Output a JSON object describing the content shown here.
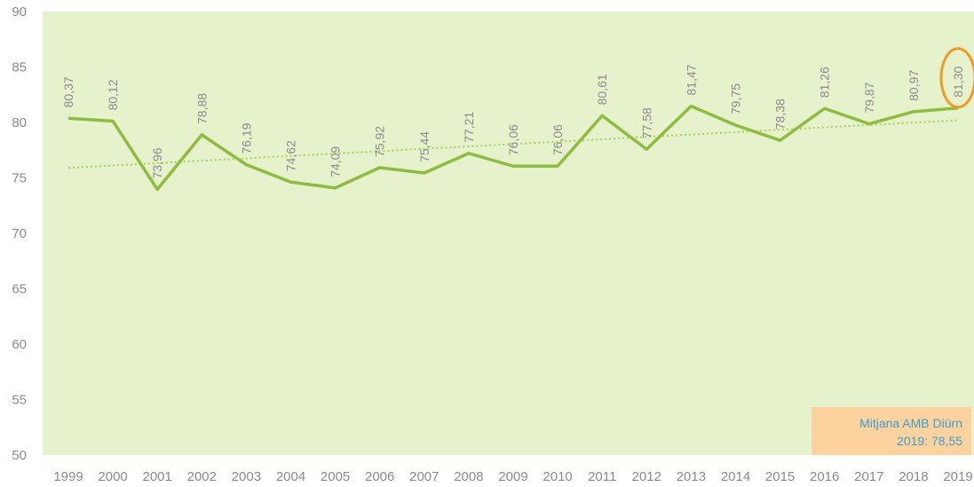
{
  "colors": {
    "plot_background": "#e6f2cc",
    "line": "#8ebc3e",
    "trendline": "#a8cf55",
    "tick_text": "#8a8a8a",
    "highlight_circle": "#f09a26",
    "annotation_background": "#fcd29e",
    "annotation_text": "#3a9fd0"
  },
  "chart_data": {
    "type": "line",
    "title": "",
    "xlabel": "",
    "ylabel": "",
    "ylim": [
      50,
      90
    ],
    "yticks": [
      "50",
      "55",
      "60",
      "65",
      "70",
      "75",
      "80",
      "85",
      "90"
    ],
    "x": [
      "1999",
      "2000",
      "2001",
      "2002",
      "2003",
      "2004",
      "2005",
      "2006",
      "2007",
      "2008",
      "2009",
      "2010",
      "2011",
      "2012",
      "2013",
      "2014",
      "2015",
      "2016",
      "2017",
      "2018",
      "2019"
    ],
    "series": [
      {
        "values": [
          80.37,
          80.12,
          73.96,
          78.88,
          76.19,
          74.62,
          74.09,
          75.92,
          75.44,
          77.21,
          76.06,
          76.06,
          80.61,
          77.58,
          81.47,
          79.75,
          78.38,
          81.26,
          79.87,
          80.97,
          81.3
        ],
        "data_labels": [
          "80,37",
          "80,12",
          "73,96",
          "78,88",
          "76,19",
          "74,62",
          "74,09",
          "75,92",
          "75,44",
          "77,21",
          "76,06",
          "76,06",
          "80,61",
          "77,58",
          "81,47",
          "79,75",
          "78,38",
          "81,26",
          "79,87",
          "80,97",
          "81,30"
        ]
      }
    ],
    "trendline": {
      "style": "dotted",
      "type": "linear",
      "start": 75.9,
      "end": 80.2
    },
    "highlight": {
      "category": "2019",
      "shape": "circle"
    },
    "grid": false,
    "legend": "none",
    "annotation": {
      "line1": "Mitjana AMB Diürn",
      "line2": "2019: 78,55",
      "placement": "bottom-right"
    }
  }
}
